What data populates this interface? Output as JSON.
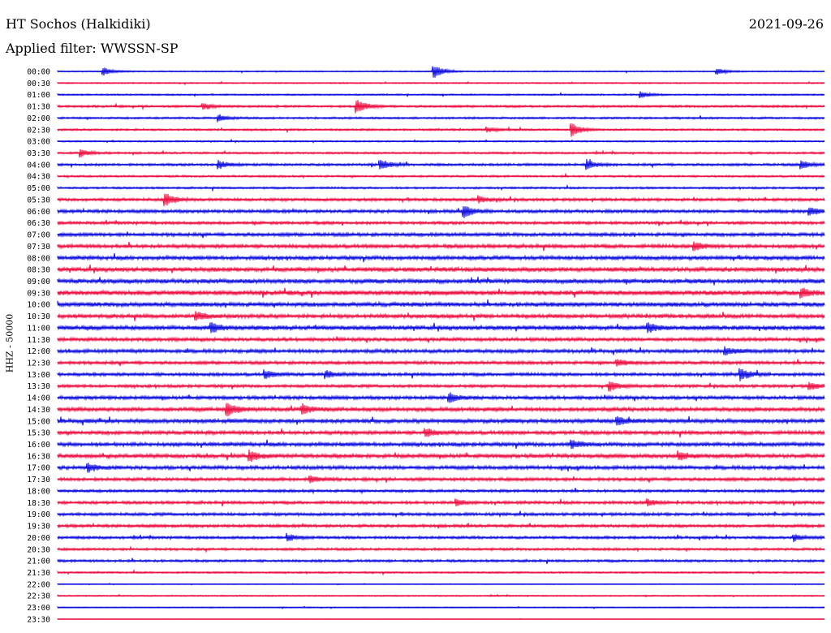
{
  "header": {
    "station": "HT Sochos (Halkidiki)",
    "date": "2021-09-26",
    "filter": "Applied filter: WWSSN-SP",
    "channel_label": "HHZ - 50000"
  },
  "colors": {
    "even_row": "#1010e0",
    "odd_row": "#ee1144"
  },
  "chart_data": {
    "type": "line",
    "title": "HT Sochos (Halkidiki)",
    "ylabel": "HHZ - 50000",
    "rows": [
      "00:00",
      "00:30",
      "01:00",
      "01:30",
      "02:00",
      "02:30",
      "03:00",
      "03:30",
      "04:00",
      "04:30",
      "05:00",
      "05:30",
      "06:00",
      "06:30",
      "07:00",
      "07:30",
      "08:00",
      "08:30",
      "09:00",
      "09:30",
      "10:00",
      "10:30",
      "11:00",
      "11:30",
      "12:00",
      "12:30",
      "13:00",
      "13:30",
      "14:00",
      "14:30",
      "15:00",
      "15:30",
      "16:00",
      "16:30",
      "17:00",
      "17:30",
      "18:00",
      "18:30",
      "19:00",
      "19:30",
      "20:00",
      "20:30",
      "21:00",
      "21:30",
      "22:00",
      "22:30",
      "23:00",
      "23:30"
    ],
    "noise_level": [
      0.5,
      0.5,
      0.6,
      0.9,
      0.8,
      0.8,
      0.6,
      0.8,
      1.0,
      0.8,
      0.8,
      1.2,
      1.3,
      1.2,
      1.4,
      1.5,
      1.6,
      1.8,
      1.8,
      1.9,
      1.8,
      1.6,
      1.8,
      1.4,
      1.5,
      1.3,
      1.3,
      1.2,
      1.4,
      1.6,
      1.7,
      1.5,
      1.6,
      1.6,
      1.5,
      1.3,
      1.1,
      1.2,
      1.2,
      1.2,
      1.1,
      1.0,
      1.0,
      0.7,
      0.3,
      0.5,
      0.4,
      0.2
    ],
    "events": [
      {
        "row": "00:00",
        "t": 0.06,
        "amp": 5
      },
      {
        "row": "00:00",
        "t": 0.49,
        "amp": 9
      },
      {
        "row": "00:00",
        "t": 0.86,
        "amp": 4
      },
      {
        "row": "01:00",
        "t": 0.76,
        "amp": 4
      },
      {
        "row": "01:30",
        "t": 0.19,
        "amp": 4
      },
      {
        "row": "01:30",
        "t": 0.39,
        "amp": 9
      },
      {
        "row": "02:00",
        "t": 0.21,
        "amp": 4
      },
      {
        "row": "02:30",
        "t": 0.56,
        "amp": 3
      },
      {
        "row": "02:30",
        "t": 0.67,
        "amp": 9
      },
      {
        "row": "03:30",
        "t": 0.03,
        "amp": 5
      },
      {
        "row": "04:00",
        "t": 0.21,
        "amp": 5
      },
      {
        "row": "04:00",
        "t": 0.42,
        "amp": 7
      },
      {
        "row": "04:00",
        "t": 0.69,
        "amp": 7
      },
      {
        "row": "04:00",
        "t": 0.97,
        "amp": 5
      },
      {
        "row": "05:30",
        "t": 0.14,
        "amp": 8
      },
      {
        "row": "05:30",
        "t": 0.55,
        "amp": 4
      },
      {
        "row": "06:00",
        "t": 0.53,
        "amp": 7
      },
      {
        "row": "06:00",
        "t": 0.98,
        "amp": 5
      },
      {
        "row": "07:30",
        "t": 0.83,
        "amp": 5
      },
      {
        "row": "09:30",
        "t": 0.97,
        "amp": 5
      },
      {
        "row": "10:30",
        "t": 0.18,
        "amp": 6
      },
      {
        "row": "11:00",
        "t": 0.2,
        "amp": 6
      },
      {
        "row": "11:00",
        "t": 0.77,
        "amp": 5
      },
      {
        "row": "12:00",
        "t": 0.87,
        "amp": 5
      },
      {
        "row": "12:30",
        "t": 0.73,
        "amp": 4
      },
      {
        "row": "13:00",
        "t": 0.27,
        "amp": 5
      },
      {
        "row": "13:00",
        "t": 0.35,
        "amp": 4
      },
      {
        "row": "13:00",
        "t": 0.89,
        "amp": 7
      },
      {
        "row": "13:30",
        "t": 0.72,
        "amp": 6
      },
      {
        "row": "13:30",
        "t": 0.98,
        "amp": 5
      },
      {
        "row": "14:00",
        "t": 0.51,
        "amp": 6
      },
      {
        "row": "14:30",
        "t": 0.22,
        "amp": 9
      },
      {
        "row": "14:30",
        "t": 0.32,
        "amp": 6
      },
      {
        "row": "15:00",
        "t": 0.73,
        "amp": 5
      },
      {
        "row": "15:30",
        "t": 0.48,
        "amp": 5
      },
      {
        "row": "16:00",
        "t": 0.67,
        "amp": 5
      },
      {
        "row": "16:30",
        "t": 0.25,
        "amp": 7
      },
      {
        "row": "16:30",
        "t": 0.81,
        "amp": 5
      },
      {
        "row": "17:00",
        "t": 0.04,
        "amp": 5
      },
      {
        "row": "17:30",
        "t": 0.33,
        "amp": 4
      },
      {
        "row": "18:30",
        "t": 0.52,
        "amp": 4
      },
      {
        "row": "18:30",
        "t": 0.77,
        "amp": 4
      },
      {
        "row": "20:00",
        "t": 0.3,
        "amp": 4
      },
      {
        "row": "20:00",
        "t": 0.96,
        "amp": 4
      }
    ],
    "grid": false
  }
}
